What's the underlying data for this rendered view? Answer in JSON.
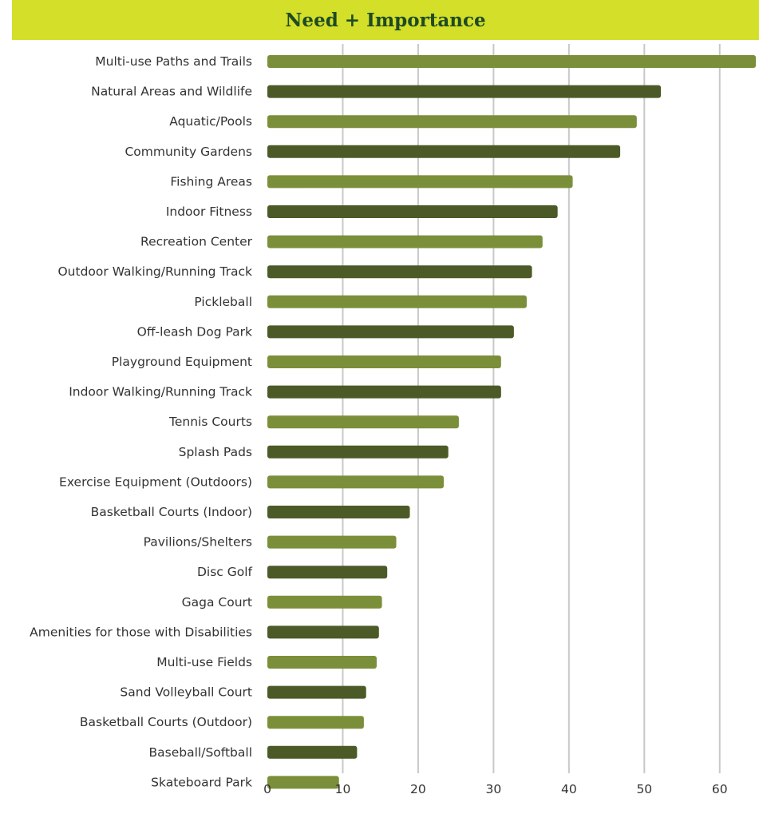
{
  "colors": {
    "title_bar": "#d3df28",
    "title_text": "#1e4a24",
    "bar_light": "#7b8f3a",
    "bar_dark": "#4c5a27",
    "grid": "#c8c8c8"
  },
  "chart_data": {
    "type": "bar",
    "orientation": "horizontal",
    "title": "Need + Importance",
    "xlim": [
      0,
      65
    ],
    "xticks": [
      0,
      10,
      20,
      30,
      40,
      50,
      60
    ],
    "grid": "vertical",
    "legend": "none",
    "categories": [
      "Multi-use Paths and Trails",
      "Natural Areas and Wildlife",
      "Aquatic/Pools",
      "Community Gardens",
      "Fishing Areas",
      "Indoor Fitness",
      "Recreation Center",
      "Outdoor Walking/Running Track",
      "Pickleball",
      "Off-leash Dog Park",
      "Playground Equipment",
      "Indoor Walking/Running Track",
      "Tennis Courts",
      "Splash Pads",
      "Exercise Equipment (Outdoors)",
      "Basketball Courts (Indoor)",
      "Pavilions/Shelters",
      "Disc Golf",
      "Gaga Court",
      "Amenities for those with Disabilities",
      "Multi-use Fields",
      "Sand Volleyball Court",
      "Basketball Courts (Outdoor)",
      "Baseball/Softball",
      "Skateboard Park"
    ],
    "values": [
      64.8,
      52.2,
      49.0,
      46.8,
      40.5,
      38.5,
      36.5,
      35.1,
      34.4,
      32.7,
      31.0,
      31.0,
      25.4,
      24.0,
      23.4,
      18.9,
      17.1,
      15.9,
      15.2,
      14.8,
      14.5,
      13.1,
      12.8,
      11.9,
      9.5
    ]
  }
}
